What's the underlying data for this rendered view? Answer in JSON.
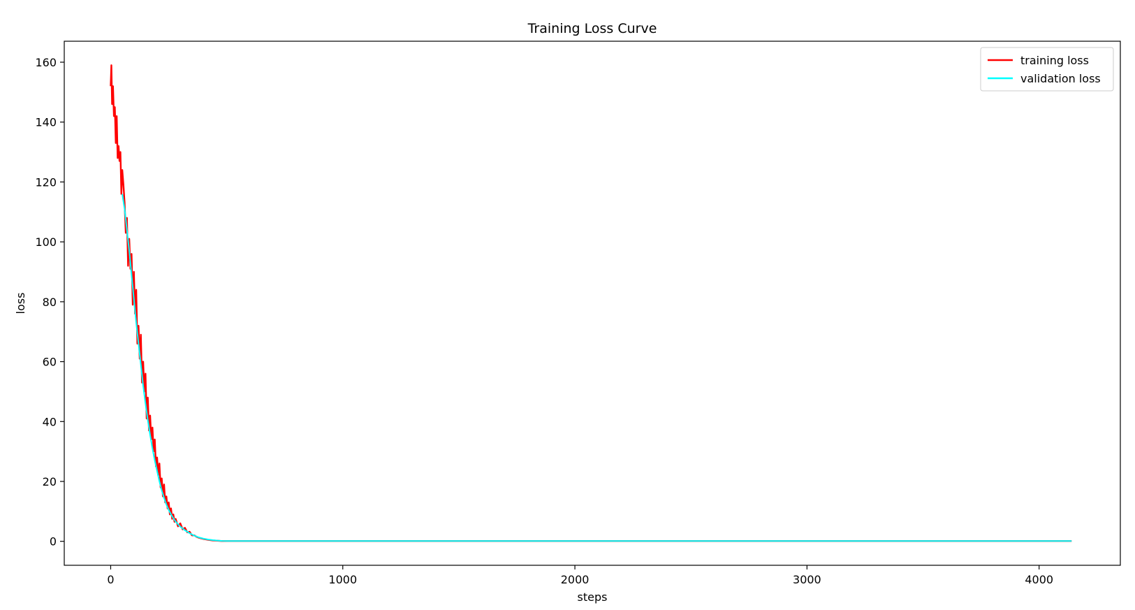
{
  "chart_data": {
    "type": "line",
    "title": "Training Loss Curve",
    "xlabel": "steps",
    "ylabel": "loss",
    "xlim": [
      -200,
      4350
    ],
    "ylim": [
      -8,
      167
    ],
    "xticks": [
      0,
      1000,
      2000,
      3000,
      4000
    ],
    "yticks": [
      0,
      20,
      40,
      60,
      80,
      100,
      120,
      140,
      160
    ],
    "grid": false,
    "legend_position": "top-right",
    "series": [
      {
        "name": "training loss",
        "color": "#ff0000",
        "x": [
          0,
          3,
          6,
          10,
          14,
          18,
          22,
          26,
          30,
          34,
          38,
          42,
          46,
          50,
          55,
          60,
          65,
          70,
          75,
          80,
          85,
          90,
          95,
          100,
          105,
          110,
          115,
          120,
          125,
          130,
          135,
          140,
          145,
          150,
          155,
          160,
          165,
          170,
          175,
          180,
          185,
          190,
          195,
          200,
          205,
          210,
          215,
          220,
          225,
          230,
          235,
          240,
          245,
          250,
          255,
          260,
          265,
          270,
          275,
          280,
          290,
          300,
          310,
          320,
          330,
          340,
          350,
          360,
          370,
          380,
          400,
          420,
          440,
          460,
          480,
          500,
          600,
          800,
          1000,
          1500,
          2000,
          2500,
          3000,
          3500,
          4000,
          4140
        ],
        "values": [
          152,
          159,
          146,
          152,
          142,
          145,
          133,
          142,
          128,
          132,
          127,
          130,
          116,
          124,
          119,
          113,
          103,
          108,
          92,
          101,
          91,
          96,
          79,
          90,
          76,
          84,
          66,
          72,
          61,
          69,
          53,
          60,
          50,
          56,
          41,
          48,
          37,
          42,
          34,
          38,
          30,
          34,
          25,
          28,
          22,
          26,
          18,
          21,
          15,
          19,
          13,
          15,
          11,
          13,
          9,
          11,
          7.5,
          9,
          6.5,
          7.5,
          5,
          6,
          4,
          4.5,
          3,
          3.2,
          2,
          2,
          1.5,
          1.2,
          0.8,
          0.5,
          0.3,
          0.2,
          0.1,
          0.1,
          0.1,
          0.1,
          0.1,
          0.1,
          0.1,
          0.1,
          0.1,
          0.1,
          0.1,
          0.1
        ]
      },
      {
        "name": "validation loss",
        "color": "#00ffff",
        "x": [
          50,
          60,
          70,
          80,
          90,
          100,
          110,
          120,
          130,
          140,
          150,
          160,
          170,
          180,
          190,
          200,
          210,
          220,
          230,
          240,
          250,
          260,
          270,
          280,
          290,
          300,
          320,
          340,
          360,
          380,
          400,
          420,
          440,
          460,
          480,
          500,
          600,
          800,
          1000,
          1500,
          2000,
          2500,
          3000,
          3500,
          4000,
          4140
        ],
        "values": [
          116,
          111,
          104,
          97,
          89,
          81,
          73,
          66,
          59,
          52,
          46,
          40.5,
          35.5,
          31,
          27,
          23.5,
          20,
          17,
          14.5,
          12.3,
          10.5,
          9,
          7.7,
          6.6,
          5.7,
          4.9,
          3.7,
          2.7,
          1.9,
          1.3,
          0.9,
          0.6,
          0.4,
          0.25,
          0.15,
          0.1,
          0.1,
          0.1,
          0.1,
          0.1,
          0.1,
          0.1,
          0.1,
          0.1,
          0.1,
          0.1
        ]
      }
    ]
  }
}
